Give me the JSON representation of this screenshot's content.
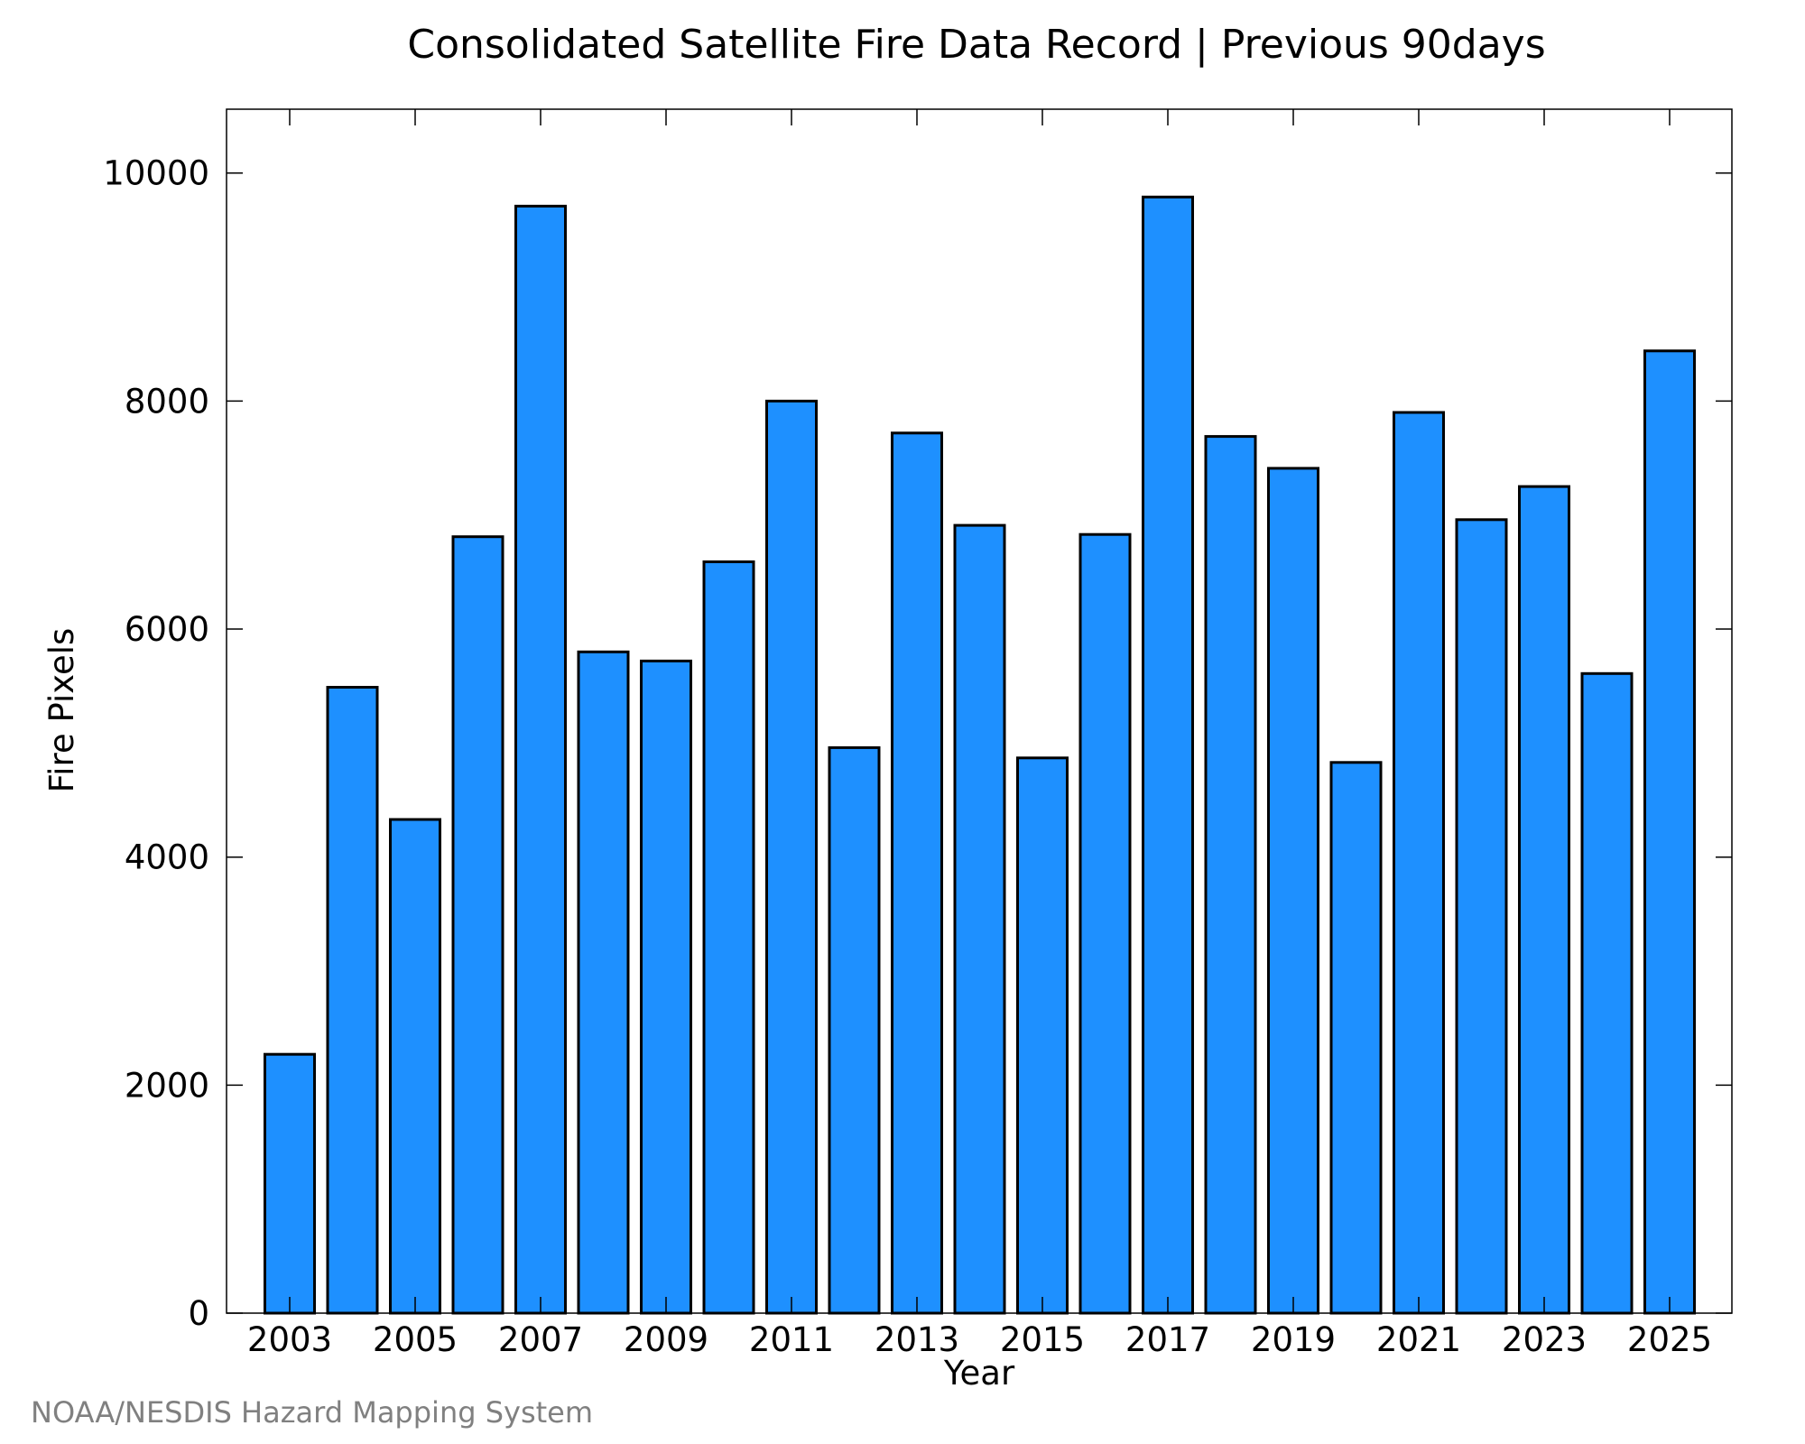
{
  "chart_data": {
    "type": "bar",
    "title": "Consolidated Satellite Fire Data Record | Previous 90days",
    "xlabel": "Year",
    "ylabel": "Fire Pixels",
    "categories": [
      "2003",
      "2004",
      "2005",
      "2006",
      "2007",
      "2008",
      "2009",
      "2010",
      "2011",
      "2012",
      "2013",
      "2014",
      "2015",
      "2016",
      "2017",
      "2018",
      "2019",
      "2020",
      "2021",
      "2022",
      "2023",
      "2024",
      "2025"
    ],
    "x_tick_labels": [
      "2003",
      "2005",
      "2007",
      "2009",
      "2011",
      "2013",
      "2015",
      "2017",
      "2019",
      "2021",
      "2023",
      "2025"
    ],
    "values": [
      2270,
      5490,
      4330,
      6810,
      9710,
      5800,
      5720,
      6590,
      8000,
      4960,
      7720,
      6910,
      4870,
      6830,
      9790,
      7690,
      7410,
      4830,
      7900,
      6960,
      7250,
      5610,
      8440
    ],
    "ylim": [
      0,
      10560
    ],
    "y_ticks": [
      0,
      2000,
      4000,
      6000,
      8000,
      10000
    ],
    "y_tick_labels": [
      "0",
      "2000",
      "4000",
      "6000",
      "8000",
      "10000"
    ],
    "grid": false,
    "bar_color": "#1e90ff",
    "edge_color": "#000000"
  },
  "credit": "NOAA/NESDIS Hazard Mapping System"
}
